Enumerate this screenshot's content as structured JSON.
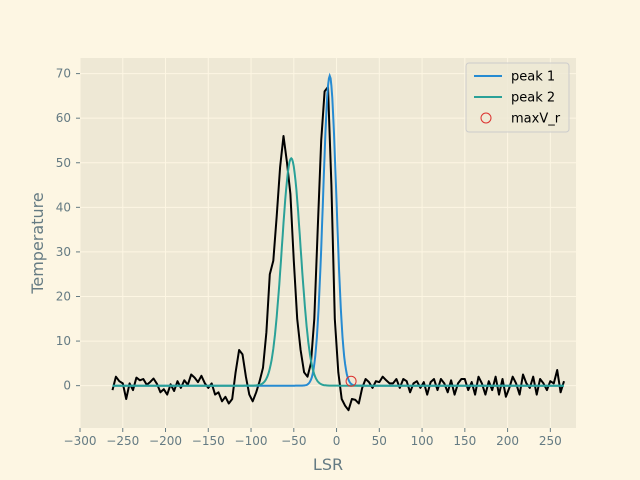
{
  "chart_data": {
    "type": "line",
    "title": "",
    "xlabel": "LSR",
    "ylabel": "Temperature",
    "xlim": [
      -300,
      280
    ],
    "ylim": [
      -9.5,
      73.5
    ],
    "xticks": [
      -300,
      -250,
      -200,
      -150,
      -100,
      -50,
      0,
      50,
      100,
      150,
      200,
      250
    ],
    "yticks": [
      0,
      10,
      20,
      30,
      40,
      50,
      60,
      70
    ],
    "grid": true,
    "legend_position": "top-right",
    "colors": {
      "background": "#fdf6e3",
      "plot_background": "#eee8d5",
      "grid": "#fdf6e3",
      "observed": "#000000",
      "peak1": "#268bd2",
      "peak2": "#2aa198",
      "marker": "#dc322f"
    },
    "series": [
      {
        "name": "",
        "role": "observed",
        "x": [
          -262,
          -258,
          -254,
          -250,
          -246,
          -242,
          -238,
          -234,
          -230,
          -226,
          -222,
          -218,
          -214,
          -210,
          -206,
          -202,
          -198,
          -194,
          -190,
          -186,
          -182,
          -178,
          -174,
          -170,
          -166,
          -162,
          -158,
          -154,
          -150,
          -146,
          -142,
          -138,
          -134,
          -130,
          -126,
          -122,
          -118,
          -114,
          -110,
          -106,
          -102,
          -98,
          -94,
          -90,
          -86,
          -82,
          -78,
          -74,
          -70,
          -66,
          -62,
          -58,
          -54,
          -50,
          -46,
          -42,
          -38,
          -34,
          -30,
          -26,
          -22,
          -18,
          -14,
          -10,
          -6,
          -2,
          2,
          6,
          10,
          14,
          18,
          22,
          26,
          30,
          34,
          38,
          42,
          46,
          50,
          54,
          58,
          62,
          66,
          70,
          74,
          78,
          82,
          86,
          90,
          94,
          98,
          102,
          106,
          110,
          114,
          118,
          122,
          126,
          130,
          134,
          138,
          142,
          146,
          150,
          154,
          158,
          162,
          166,
          170,
          174,
          178,
          182,
          186,
          190,
          194,
          198,
          202,
          206,
          210,
          214,
          218,
          222,
          226,
          230,
          234,
          238,
          242,
          246,
          250,
          254,
          258,
          262,
          266
        ],
        "y": [
          -1.0,
          2.0,
          1.0,
          0.5,
          -3.0,
          0.5,
          -1.0,
          1.8,
          1.2,
          1.5,
          0.2,
          0.8,
          1.6,
          0.4,
          -1.5,
          -0.8,
          -2.0,
          0.3,
          -1.2,
          1.0,
          -0.5,
          1.2,
          0.2,
          2.5,
          1.8,
          0.8,
          2.2,
          0.5,
          -0.5,
          0.5,
          -2.0,
          -1.5,
          -3.5,
          -2.5,
          -4.0,
          -3.0,
          3.0,
          8.0,
          7.0,
          2.0,
          -2.0,
          -3.5,
          -1.5,
          1.0,
          4.0,
          12.0,
          25.0,
          28.0,
          38.0,
          49.0,
          56.0,
          50.0,
          43.0,
          28.0,
          15.0,
          8.0,
          3.0,
          2.0,
          5.0,
          15.0,
          35.0,
          55.0,
          66.0,
          67.0,
          45.0,
          15.0,
          3.0,
          -3.0,
          -4.5,
          -5.5,
          -3.0,
          -3.2,
          -4.0,
          -0.5,
          1.5,
          0.8,
          -0.5,
          1.0,
          0.8,
          2.0,
          1.2,
          0.5,
          0.5,
          1.5,
          -0.5,
          1.5,
          1.0,
          -1.5,
          0.5,
          1.0,
          -0.5,
          0.8,
          -2.0,
          0.8,
          1.5,
          -1.0,
          1.5,
          0.5,
          -1.5,
          1.2,
          -2.0,
          0.5,
          1.5,
          1.5,
          -1.0,
          0.8,
          -2.0,
          2.0,
          0.5,
          -2.0,
          1.0,
          -1.0,
          2.0,
          -2.0,
          1.5,
          -2.5,
          -0.5,
          2.0,
          0.5,
          -2.0,
          2.5,
          0.5,
          -0.5,
          2.0,
          -2.0,
          1.5,
          0.5,
          -1.0,
          1.0,
          0.5,
          3.5,
          -1.5,
          1.0
        ]
      },
      {
        "name": "peak 1",
        "role": "gaussian",
        "amplitude": 69.5,
        "center": -8,
        "sigma": 7.8
      },
      {
        "name": "peak 2",
        "role": "gaussian",
        "amplitude": 51.0,
        "center": -53,
        "sigma": 11.0
      },
      {
        "name": "maxV_r",
        "role": "marker",
        "points": [
          {
            "x": 17,
            "y": 1.0
          }
        ]
      }
    ]
  }
}
